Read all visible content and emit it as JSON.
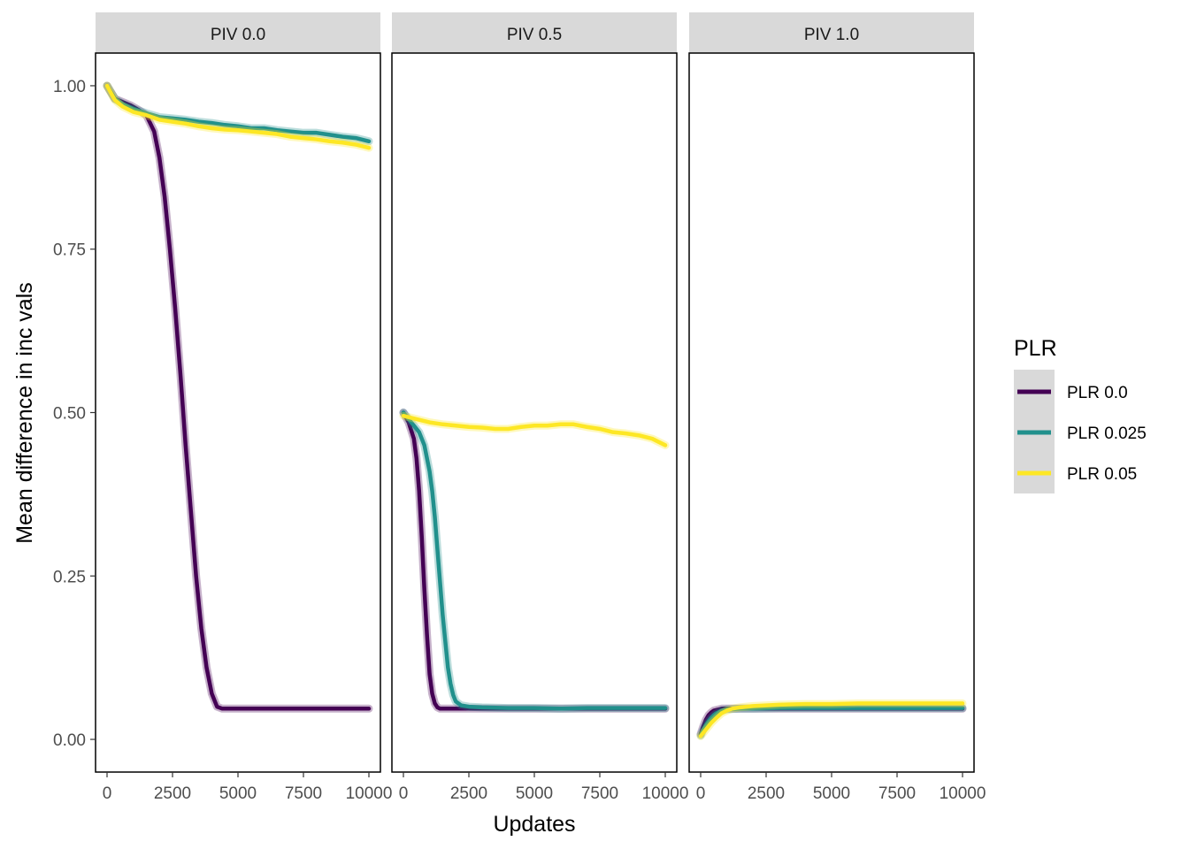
{
  "chart_data": {
    "type": "line",
    "xlabel": "Updates",
    "ylabel": "Mean difference in inc vals",
    "xlim": [
      0,
      10000
    ],
    "ylim": [
      -0.05,
      1.05
    ],
    "x_ticks": [
      0,
      2500,
      5000,
      7500,
      10000
    ],
    "x_tick_labels": [
      "0",
      "2500",
      "5000",
      "7500",
      "10000"
    ],
    "y_ticks": [
      0,
      0.25,
      0.5,
      0.75,
      1.0
    ],
    "y_tick_labels": [
      "0.00",
      "0.25",
      "0.50",
      "0.75",
      "1.00"
    ],
    "grid": false,
    "legend": {
      "title": "PLR",
      "placement": "right",
      "entries": [
        {
          "label": "PLR 0.0",
          "color": "#440154"
        },
        {
          "label": "PLR 0.025",
          "color": "#21908C"
        },
        {
          "label": "PLR 0.05",
          "color": "#FDE725"
        }
      ]
    },
    "panels": [
      {
        "title": "PIV 0.0",
        "series": [
          {
            "name": "PLR 0.0",
            "color": "#440154",
            "x": [
              0,
              300,
              600,
              900,
              1200,
              1500,
              1800,
              2000,
              2200,
              2400,
              2600,
              2800,
              3000,
              3200,
              3400,
              3600,
              3800,
              4000,
              4200,
              4400,
              4600,
              5000,
              6000,
              7000,
              8000,
              9000,
              10000
            ],
            "y": [
              1.0,
              0.98,
              0.975,
              0.97,
              0.963,
              0.955,
              0.93,
              0.89,
              0.83,
              0.75,
              0.66,
              0.56,
              0.45,
              0.35,
              0.25,
              0.17,
              0.11,
              0.07,
              0.05,
              0.047,
              0.047,
              0.047,
              0.047,
              0.047,
              0.047,
              0.047,
              0.047
            ]
          },
          {
            "name": "PLR 0.025",
            "color": "#21908C",
            "x": [
              0,
              300,
              600,
              1000,
              1500,
              2000,
              2500,
              3000,
              3500,
              4000,
              4500,
              5000,
              5500,
              6000,
              6500,
              7000,
              7500,
              8000,
              8500,
              9000,
              9500,
              10000
            ],
            "y": [
              1.0,
              0.98,
              0.972,
              0.965,
              0.958,
              0.952,
              0.95,
              0.948,
              0.945,
              0.943,
              0.94,
              0.938,
              0.935,
              0.935,
              0.932,
              0.93,
              0.928,
              0.928,
              0.925,
              0.922,
              0.92,
              0.915
            ]
          },
          {
            "name": "PLR 0.05",
            "color": "#FDE725",
            "x": [
              0,
              300,
              600,
              1000,
              1500,
              2000,
              2500,
              3000,
              3500,
              4000,
              4500,
              5000,
              5500,
              6000,
              6500,
              7000,
              7500,
              8000,
              8500,
              9000,
              9500,
              10000
            ],
            "y": [
              1.0,
              0.978,
              0.968,
              0.96,
              0.955,
              0.948,
              0.945,
              0.942,
              0.938,
              0.935,
              0.933,
              0.932,
              0.93,
              0.928,
              0.926,
              0.922,
              0.92,
              0.918,
              0.915,
              0.913,
              0.91,
              0.905
            ]
          }
        ]
      },
      {
        "title": "PIV 0.5",
        "series": [
          {
            "name": "PLR 0.0",
            "color": "#440154",
            "x": [
              0,
              200,
              400,
              500,
              600,
              700,
              800,
              900,
              1000,
              1100,
              1200,
              1300,
              1400,
              1500,
              1700,
              2000,
              3000,
              5000,
              7500,
              10000
            ],
            "y": [
              0.5,
              0.485,
              0.46,
              0.43,
              0.38,
              0.31,
              0.23,
              0.16,
              0.1,
              0.07,
              0.055,
              0.049,
              0.047,
              0.047,
              0.047,
              0.047,
              0.047,
              0.047,
              0.047,
              0.047
            ]
          },
          {
            "name": "PLR 0.025",
            "color": "#21908C",
            "x": [
              0,
              200,
              400,
              600,
              800,
              1000,
              1100,
              1200,
              1300,
              1400,
              1500,
              1600,
              1700,
              1800,
              1900,
              2000,
              2200,
              2500,
              3000,
              4000,
              5000,
              6000,
              7000,
              8000,
              9000,
              10000
            ],
            "y": [
              0.5,
              0.49,
              0.48,
              0.47,
              0.45,
              0.41,
              0.38,
              0.34,
              0.29,
              0.24,
              0.19,
              0.15,
              0.11,
              0.085,
              0.068,
              0.058,
              0.052,
              0.05,
              0.049,
              0.048,
              0.048,
              0.047,
              0.048,
              0.048,
              0.048,
              0.048
            ]
          },
          {
            "name": "PLR 0.05",
            "color": "#FDE725",
            "x": [
              0,
              500,
              1000,
              1500,
              2000,
              2500,
              3000,
              3500,
              4000,
              4500,
              5000,
              5500,
              6000,
              6500,
              7000,
              7500,
              8000,
              8500,
              9000,
              9500,
              10000
            ],
            "y": [
              0.495,
              0.49,
              0.485,
              0.482,
              0.48,
              0.478,
              0.477,
              0.475,
              0.475,
              0.478,
              0.48,
              0.48,
              0.482,
              0.482,
              0.478,
              0.475,
              0.47,
              0.468,
              0.465,
              0.46,
              0.45
            ]
          }
        ]
      },
      {
        "title": "PIV 1.0",
        "series": [
          {
            "name": "PLR 0.0",
            "color": "#440154",
            "x": [
              0,
              100,
              200,
              300,
              400,
              500,
              600,
              800,
              1000,
              1500,
              2000,
              3000,
              5000,
              7500,
              10000
            ],
            "y": [
              0.008,
              0.02,
              0.03,
              0.037,
              0.041,
              0.044,
              0.045,
              0.047,
              0.047,
              0.047,
              0.047,
              0.047,
              0.047,
              0.047,
              0.047
            ]
          },
          {
            "name": "PLR 0.025",
            "color": "#21908C",
            "x": [
              0,
              100,
              200,
              300,
              400,
              500,
              600,
              800,
              1000,
              1500,
              2000,
              3000,
              5000,
              7500,
              10000
            ],
            "y": [
              0.006,
              0.015,
              0.022,
              0.028,
              0.033,
              0.037,
              0.04,
              0.044,
              0.046,
              0.047,
              0.047,
              0.048,
              0.048,
              0.048,
              0.048
            ]
          },
          {
            "name": "PLR 0.05",
            "color": "#FDE725",
            "x": [
              0,
              200,
              400,
              600,
              800,
              1000,
              1200,
              1500,
              2000,
              2500,
              3000,
              4000,
              5000,
              6000,
              7000,
              8000,
              9000,
              10000
            ],
            "y": [
              0.005,
              0.015,
              0.025,
              0.033,
              0.04,
              0.044,
              0.047,
              0.049,
              0.051,
              0.052,
              0.053,
              0.054,
              0.054,
              0.055,
              0.055,
              0.055,
              0.055,
              0.055
            ]
          }
        ]
      }
    ]
  }
}
